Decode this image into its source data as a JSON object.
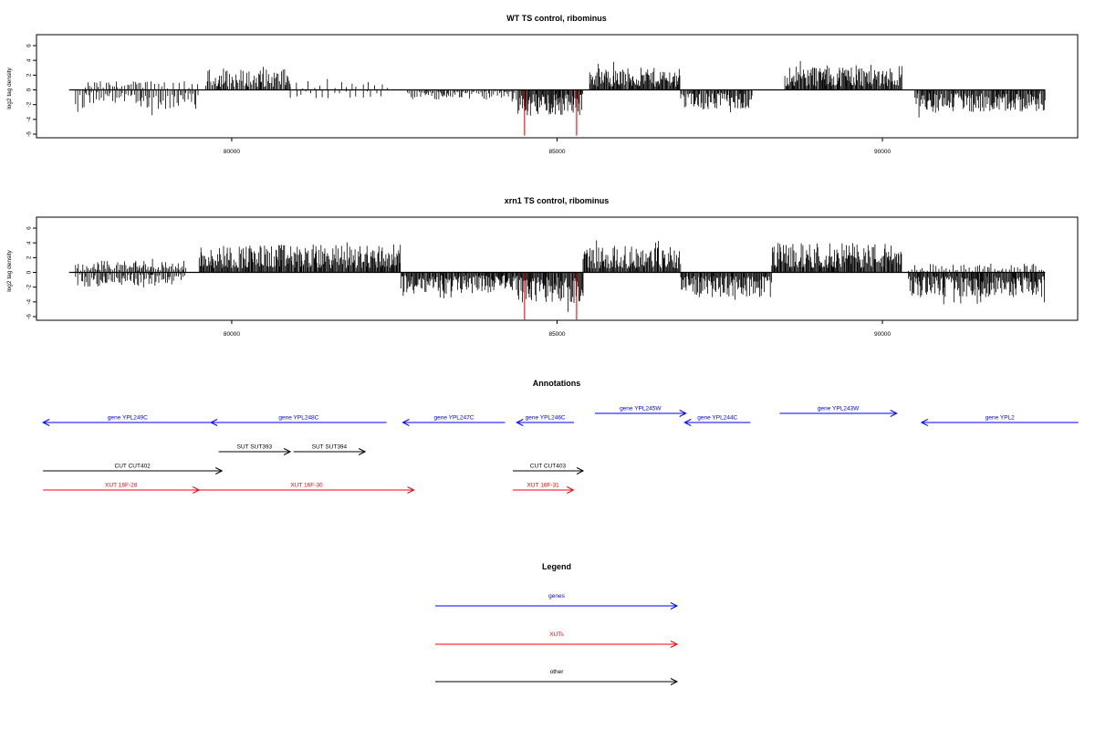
{
  "colors": {
    "gene": "#0000ff",
    "xut": "#ff0000",
    "other": "#000000",
    "bar": "#000000",
    "highlight": "#ff0000"
  },
  "chart_data": [
    {
      "type": "bar",
      "title": "WT TS control, ribominus",
      "ylabel": "log2 tag density",
      "xlim": [
        77000,
        93000
      ],
      "ylim": [
        -6,
        7
      ],
      "yticks": [
        -6,
        -4,
        -2,
        0,
        2,
        4,
        6
      ],
      "xticks": [
        80000,
        85000,
        90000
      ],
      "grid": false,
      "segments": [
        {
          "start": 77600,
          "end": 77750,
          "sign": -1,
          "amp": 3.0,
          "density": 0.4
        },
        {
          "start": 77750,
          "end": 78700,
          "sign": 1,
          "amp": 1.2,
          "density": 0.35
        },
        {
          "start": 77750,
          "end": 78700,
          "sign": -1,
          "amp": 2.2,
          "density": 0.45
        },
        {
          "start": 78700,
          "end": 79500,
          "sign": -1,
          "amp": 2.6,
          "density": 0.45
        },
        {
          "start": 78700,
          "end": 79500,
          "sign": 1,
          "amp": 1.2,
          "density": 0.2
        },
        {
          "start": 79600,
          "end": 80900,
          "sign": 1,
          "amp": 2.8,
          "density": 0.7
        },
        {
          "start": 80900,
          "end": 82400,
          "sign": 1,
          "amp": 1.2,
          "density": 0.15
        },
        {
          "start": 80900,
          "end": 82400,
          "sign": -1,
          "amp": 1.2,
          "density": 0.15
        },
        {
          "start": 82700,
          "end": 84400,
          "sign": -1,
          "amp": 1.4,
          "density": 0.5
        },
        {
          "start": 84400,
          "end": 85400,
          "sign": -1,
          "amp": 3.6,
          "density": 1.0
        },
        {
          "start": 85500,
          "end": 86900,
          "sign": 1,
          "amp": 3.0,
          "density": 1.0
        },
        {
          "start": 86900,
          "end": 88000,
          "sign": -1,
          "amp": 2.6,
          "density": 0.8
        },
        {
          "start": 88500,
          "end": 90300,
          "sign": 1,
          "amp": 3.4,
          "density": 1.0
        },
        {
          "start": 90500,
          "end": 92500,
          "sign": -1,
          "amp": 3.0,
          "density": 0.9
        }
      ],
      "highlights": [
        {
          "x": 84500,
          "y": -6.2
        },
        {
          "x": 85300,
          "y": -6.2
        }
      ]
    },
    {
      "type": "bar",
      "title": "xrn1 TS control, ribominus",
      "ylabel": "log2 tag density",
      "xlim": [
        77000,
        93000
      ],
      "ylim": [
        -6,
        7
      ],
      "yticks": [
        -6,
        -4,
        -2,
        0,
        2,
        4,
        6
      ],
      "xticks": [
        80000,
        85000,
        90000
      ],
      "grid": false,
      "segments": [
        {
          "start": 77600,
          "end": 78000,
          "sign": 1,
          "amp": 1.5,
          "density": 0.5
        },
        {
          "start": 77600,
          "end": 78000,
          "sign": -1,
          "amp": 2.0,
          "density": 0.5
        },
        {
          "start": 78000,
          "end": 79300,
          "sign": 1,
          "amp": 1.6,
          "density": 0.6
        },
        {
          "start": 78000,
          "end": 79300,
          "sign": -1,
          "amp": 1.8,
          "density": 0.6
        },
        {
          "start": 79500,
          "end": 82600,
          "sign": 1,
          "amp": 3.8,
          "density": 1.0
        },
        {
          "start": 82600,
          "end": 84400,
          "sign": -1,
          "amp": 2.8,
          "density": 1.0
        },
        {
          "start": 84400,
          "end": 85400,
          "sign": -1,
          "amp": 4.2,
          "density": 1.0
        },
        {
          "start": 85400,
          "end": 86900,
          "sign": 1,
          "amp": 3.6,
          "density": 1.0
        },
        {
          "start": 86900,
          "end": 88300,
          "sign": -1,
          "amp": 3.4,
          "density": 1.0
        },
        {
          "start": 88300,
          "end": 90300,
          "sign": 1,
          "amp": 4.0,
          "density": 1.0
        },
        {
          "start": 90400,
          "end": 92500,
          "sign": -1,
          "amp": 3.4,
          "density": 1.0
        },
        {
          "start": 90400,
          "end": 92500,
          "sign": 1,
          "amp": 1.2,
          "density": 0.3
        }
      ],
      "highlights": [
        {
          "x": 84500,
          "y": -6.4
        },
        {
          "x": 85300,
          "y": -6.4
        }
      ]
    }
  ],
  "annotations": {
    "title": "Annotations",
    "features": [
      {
        "label": "gene YPL249C",
        "kind": "gene",
        "start": 77100,
        "end": 79700,
        "dir": "left",
        "row": 0
      },
      {
        "label": "gene YPL248C",
        "kind": "gene",
        "start": 79680,
        "end": 82380,
        "dir": "left",
        "row": 0
      },
      {
        "label": "gene YPL247C",
        "kind": "gene",
        "start": 82630,
        "end": 84200,
        "dir": "left",
        "row": 0
      },
      {
        "label": "gene YPL246C",
        "kind": "gene",
        "start": 84380,
        "end": 85260,
        "dir": "left",
        "row": 0
      },
      {
        "label": "gene YPL245W",
        "kind": "gene",
        "start": 85580,
        "end": 86980,
        "dir": "right",
        "row": -1
      },
      {
        "label": "gene YPL244C",
        "kind": "gene",
        "start": 86960,
        "end": 87970,
        "dir": "left",
        "row": 0
      },
      {
        "label": "gene YPL243W",
        "kind": "gene",
        "start": 88420,
        "end": 90220,
        "dir": "right",
        "row": -1
      },
      {
        "label": "gene YPL2",
        "kind": "gene",
        "start": 90600,
        "end": 93010,
        "dir": "left",
        "row": 0
      },
      {
        "label": "SUT SUT393",
        "kind": "other",
        "start": 79800,
        "end": 80900,
        "dir": "right",
        "row": 1
      },
      {
        "label": "SUT SUT394",
        "kind": "other",
        "start": 80950,
        "end": 82050,
        "dir": "right",
        "row": 1
      },
      {
        "label": "CUT CUT402",
        "kind": "other",
        "start": 77100,
        "end": 79850,
        "dir": "right",
        "row": 2
      },
      {
        "label": "CUT CUT403",
        "kind": "other",
        "start": 84320,
        "end": 85400,
        "dir": "right",
        "row": 2
      },
      {
        "label": "XUT 16F-28",
        "kind": "xut",
        "start": 77100,
        "end": 79500,
        "dir": "right",
        "row": 3
      },
      {
        "label": "XUT 16F-30",
        "kind": "xut",
        "start": 79500,
        "end": 82800,
        "dir": "right",
        "row": 3
      },
      {
        "label": "XUT 16F-31",
        "kind": "xut",
        "start": 84320,
        "end": 85250,
        "dir": "right",
        "row": 3
      }
    ]
  },
  "legend": {
    "title": "Legend",
    "items": [
      {
        "label": "genes",
        "kind": "gene"
      },
      {
        "label": "XUTs",
        "kind": "xut"
      },
      {
        "label": "other",
        "kind": "other"
      }
    ]
  }
}
